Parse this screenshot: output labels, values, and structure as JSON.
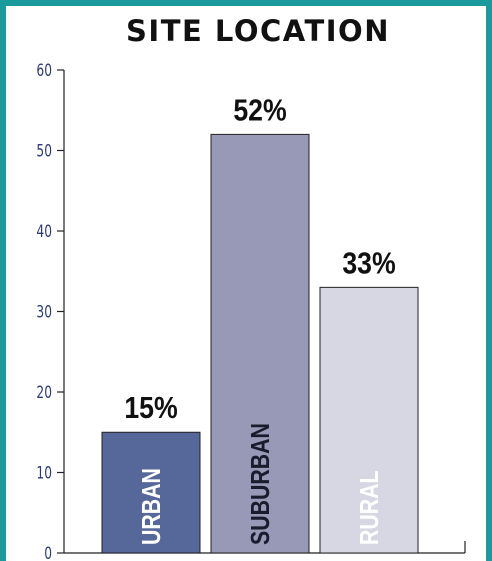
{
  "chart_data": {
    "type": "bar",
    "title": "SITE LOCATION",
    "categories": [
      "URBAN",
      "SUBURBAN",
      "RURAL"
    ],
    "values": [
      15,
      52,
      33
    ],
    "data_labels": [
      "15%",
      "52%",
      "33%"
    ],
    "yticks": [
      "0",
      "10",
      "20",
      "30",
      "40",
      "50",
      "60"
    ],
    "ylim": [
      0,
      60
    ],
    "colors": [
      "#56679a",
      "#9799b7",
      "#d7d7e4"
    ],
    "label_colors": [
      "#ffffff",
      "#1b1b2e",
      "#ffffff"
    ],
    "grid": false,
    "legend": "none"
  }
}
